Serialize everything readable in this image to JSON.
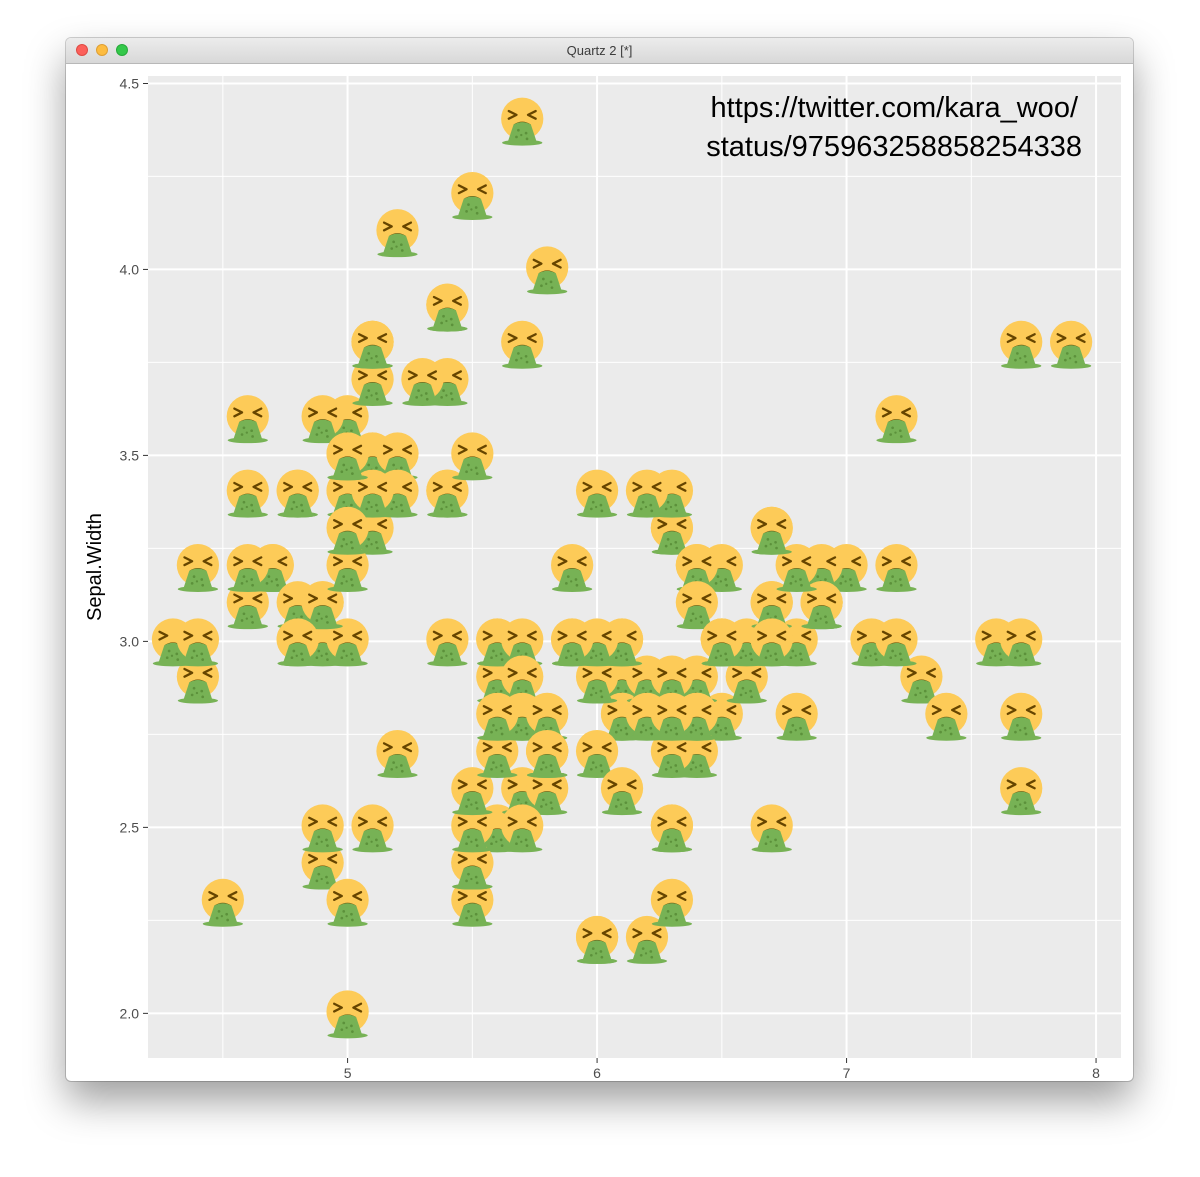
{
  "window": {
    "title": "Quartz 2 [*]"
  },
  "chart_data": {
    "type": "scatter",
    "ylabel": "Sepal.Width",
    "xlabel": "",
    "xlim": [
      4.2,
      8.1
    ],
    "ylim": [
      1.88,
      4.52
    ],
    "x_ticks": [
      "5",
      "6",
      "7",
      "8"
    ],
    "y_ticks": [
      "2.0",
      "2.5",
      "3.0",
      "3.5",
      "4.0",
      "4.5"
    ],
    "annotation": [
      "https://twitter.com/kara_woo/",
      "status/975963258858254338"
    ],
    "marker": "face-vomiting-emoji",
    "background_color": "#ebebeb",
    "marker_face_color": "#fdcb58",
    "marker_vomit_color": "#77b255",
    "points": [
      [
        5.1,
        3.5
      ],
      [
        4.9,
        3.0
      ],
      [
        4.7,
        3.2
      ],
      [
        4.6,
        3.1
      ],
      [
        5.0,
        3.6
      ],
      [
        5.4,
        3.9
      ],
      [
        4.6,
        3.4
      ],
      [
        5.0,
        3.4
      ],
      [
        4.4,
        2.9
      ],
      [
        4.9,
        3.1
      ],
      [
        5.4,
        3.7
      ],
      [
        4.8,
        3.4
      ],
      [
        4.8,
        3.0
      ],
      [
        4.3,
        3.0
      ],
      [
        5.8,
        4.0
      ],
      [
        5.7,
        4.4
      ],
      [
        5.4,
        3.9
      ],
      [
        5.1,
        3.5
      ],
      [
        5.7,
        3.8
      ],
      [
        5.1,
        3.8
      ],
      [
        5.4,
        3.4
      ],
      [
        5.1,
        3.7
      ],
      [
        4.6,
        3.6
      ],
      [
        5.1,
        3.3
      ],
      [
        4.8,
        3.4
      ],
      [
        5.0,
        3.0
      ],
      [
        5.0,
        3.4
      ],
      [
        5.2,
        3.5
      ],
      [
        5.2,
        3.4
      ],
      [
        4.7,
        3.2
      ],
      [
        4.8,
        3.1
      ],
      [
        5.4,
        3.4
      ],
      [
        5.2,
        4.1
      ],
      [
        5.5,
        4.2
      ],
      [
        4.9,
        3.1
      ],
      [
        5.0,
        3.2
      ],
      [
        5.5,
        3.5
      ],
      [
        4.9,
        3.6
      ],
      [
        4.4,
        3.0
      ],
      [
        5.1,
        3.4
      ],
      [
        5.0,
        3.5
      ],
      [
        4.5,
        2.3
      ],
      [
        4.4,
        3.2
      ],
      [
        5.0,
        3.5
      ],
      [
        5.1,
        3.8
      ],
      [
        4.8,
        3.0
      ],
      [
        5.1,
        3.8
      ],
      [
        4.6,
        3.2
      ],
      [
        5.3,
        3.7
      ],
      [
        5.0,
        3.3
      ],
      [
        7.0,
        3.2
      ],
      [
        6.4,
        3.2
      ],
      [
        6.9,
        3.1
      ],
      [
        5.5,
        2.3
      ],
      [
        6.5,
        2.8
      ],
      [
        5.7,
        2.8
      ],
      [
        6.3,
        3.3
      ],
      [
        4.9,
        2.4
      ],
      [
        6.6,
        2.9
      ],
      [
        5.2,
        2.7
      ],
      [
        5.0,
        2.0
      ],
      [
        5.9,
        3.0
      ],
      [
        6.0,
        2.2
      ],
      [
        6.1,
        2.9
      ],
      [
        5.6,
        2.9
      ],
      [
        6.7,
        3.1
      ],
      [
        5.6,
        3.0
      ],
      [
        5.8,
        2.7
      ],
      [
        6.2,
        2.2
      ],
      [
        5.6,
        2.5
      ],
      [
        5.9,
        3.2
      ],
      [
        6.1,
        2.8
      ],
      [
        6.3,
        2.5
      ],
      [
        6.1,
        2.8
      ],
      [
        6.4,
        2.9
      ],
      [
        6.6,
        3.0
      ],
      [
        6.8,
        2.8
      ],
      [
        6.7,
        3.0
      ],
      [
        6.0,
        2.9
      ],
      [
        5.7,
        2.6
      ],
      [
        5.5,
        2.4
      ],
      [
        5.5,
        2.4
      ],
      [
        5.8,
        2.7
      ],
      [
        6.0,
        2.7
      ],
      [
        5.4,
        3.0
      ],
      [
        6.0,
        3.4
      ],
      [
        6.7,
        3.1
      ],
      [
        6.3,
        2.3
      ],
      [
        5.6,
        3.0
      ],
      [
        5.5,
        2.5
      ],
      [
        5.5,
        2.6
      ],
      [
        6.1,
        3.0
      ],
      [
        5.8,
        2.6
      ],
      [
        5.0,
        2.3
      ],
      [
        5.6,
        2.7
      ],
      [
        5.7,
        3.0
      ],
      [
        5.7,
        2.9
      ],
      [
        6.2,
        2.9
      ],
      [
        5.1,
        2.5
      ],
      [
        5.7,
        2.8
      ],
      [
        6.3,
        3.3
      ],
      [
        5.8,
        2.7
      ],
      [
        7.1,
        3.0
      ],
      [
        6.3,
        2.9
      ],
      [
        6.5,
        3.0
      ],
      [
        7.6,
        3.0
      ],
      [
        4.9,
        2.5
      ],
      [
        7.3,
        2.9
      ],
      [
        6.7,
        2.5
      ],
      [
        7.2,
        3.6
      ],
      [
        6.5,
        3.2
      ],
      [
        6.4,
        2.7
      ],
      [
        6.8,
        3.0
      ],
      [
        5.7,
        2.5
      ],
      [
        5.8,
        2.8
      ],
      [
        6.4,
        3.2
      ],
      [
        6.5,
        3.0
      ],
      [
        7.7,
        3.8
      ],
      [
        7.7,
        2.6
      ],
      [
        6.0,
        2.2
      ],
      [
        6.9,
        3.2
      ],
      [
        5.6,
        2.8
      ],
      [
        7.7,
        2.8
      ],
      [
        6.3,
        2.7
      ],
      [
        6.7,
        3.3
      ],
      [
        7.2,
        3.2
      ],
      [
        6.2,
        2.8
      ],
      [
        6.1,
        3.0
      ],
      [
        6.4,
        2.8
      ],
      [
        7.2,
        3.0
      ],
      [
        7.4,
        2.8
      ],
      [
        7.9,
        3.8
      ],
      [
        6.4,
        2.8
      ],
      [
        6.3,
        2.8
      ],
      [
        6.1,
        2.6
      ],
      [
        7.7,
        3.0
      ],
      [
        6.3,
        3.4
      ],
      [
        6.4,
        3.1
      ],
      [
        6.0,
        3.0
      ],
      [
        6.9,
        3.1
      ],
      [
        6.7,
        3.1
      ],
      [
        6.9,
        3.1
      ],
      [
        5.8,
        2.7
      ],
      [
        6.8,
        3.2
      ],
      [
        6.7,
        3.3
      ],
      [
        6.7,
        3.0
      ],
      [
        6.3,
        2.5
      ],
      [
        6.5,
        3.0
      ],
      [
        6.2,
        3.4
      ],
      [
        5.9,
        3.0
      ]
    ]
  }
}
